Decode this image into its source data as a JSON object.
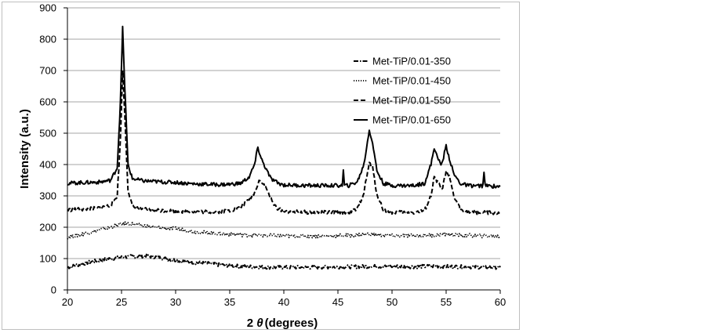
{
  "chart_data": {
    "type": "line",
    "xlabel_prefix": "2 ",
    "xlabel_symbol": "θ",
    "xlabel_suffix": "(degrees)",
    "ylabel": "Intensity (a.u.)",
    "xlim": [
      20,
      60
    ],
    "ylim": [
      0,
      900
    ],
    "xticks": [
      "20",
      "25",
      "30",
      "35",
      "40",
      "45",
      "50",
      "55",
      "60"
    ],
    "yticks": [
      "0",
      "100",
      "200",
      "300",
      "400",
      "500",
      "600",
      "700",
      "800",
      "900"
    ],
    "grid": "horizontal",
    "legend_position": "upper-right",
    "series": [
      {
        "name": "Met-TiP/0.01-350",
        "style": "dashdot",
        "points": [
          [
            20,
            72
          ],
          [
            21,
            80
          ],
          [
            22,
            88
          ],
          [
            23,
            95
          ],
          [
            24,
            100
          ],
          [
            25,
            104
          ],
          [
            26,
            107
          ],
          [
            27,
            108
          ],
          [
            28,
            106
          ],
          [
            29,
            100
          ],
          [
            30,
            95
          ],
          [
            31,
            90
          ],
          [
            32,
            87
          ],
          [
            33,
            84
          ],
          [
            34,
            80
          ],
          [
            35,
            78
          ],
          [
            36,
            75
          ],
          [
            37,
            74
          ],
          [
            38,
            73
          ],
          [
            39,
            72
          ],
          [
            40,
            72
          ],
          [
            42,
            72
          ],
          [
            44,
            73
          ],
          [
            46,
            74
          ],
          [
            48,
            75
          ],
          [
            50,
            75
          ],
          [
            52,
            74
          ],
          [
            54,
            76
          ],
          [
            56,
            74
          ],
          [
            58,
            73
          ],
          [
            60,
            72
          ]
        ]
      },
      {
        "name": "Met-TiP/0.01-450",
        "style": "dotted",
        "points": [
          [
            20,
            168
          ],
          [
            21,
            175
          ],
          [
            22,
            183
          ],
          [
            23,
            192
          ],
          [
            24,
            200
          ],
          [
            25,
            210
          ],
          [
            25.5,
            212
          ],
          [
            26,
            210
          ],
          [
            27,
            205
          ],
          [
            28,
            200
          ],
          [
            29,
            197
          ],
          [
            30,
            195
          ],
          [
            31,
            190
          ],
          [
            32,
            185
          ],
          [
            33,
            182
          ],
          [
            34,
            180
          ],
          [
            35,
            178
          ],
          [
            36,
            176
          ],
          [
            37,
            175
          ],
          [
            38,
            174
          ],
          [
            39,
            173
          ],
          [
            40,
            172
          ],
          [
            42,
            172
          ],
          [
            44,
            172
          ],
          [
            46,
            174
          ],
          [
            48,
            178
          ],
          [
            49,
            175
          ],
          [
            50,
            173
          ],
          [
            52,
            173
          ],
          [
            54,
            175
          ],
          [
            55,
            178
          ],
          [
            56,
            175
          ],
          [
            58,
            173
          ],
          [
            60,
            171
          ]
        ]
      },
      {
        "name": "Met-TiP/0.01-550",
        "style": "dashed",
        "points": [
          [
            20,
            255
          ],
          [
            21,
            257
          ],
          [
            22,
            258
          ],
          [
            23,
            262
          ],
          [
            24,
            270
          ],
          [
            24.6,
            300
          ],
          [
            24.9,
            480
          ],
          [
            25.1,
            700
          ],
          [
            25.3,
            560
          ],
          [
            25.6,
            320
          ],
          [
            26,
            265
          ],
          [
            27,
            258
          ],
          [
            28,
            255
          ],
          [
            29,
            253
          ],
          [
            30,
            252
          ],
          [
            31,
            250
          ],
          [
            32,
            250
          ],
          [
            33,
            249
          ],
          [
            34,
            250
          ],
          [
            35,
            253
          ],
          [
            36,
            262
          ],
          [
            36.8,
            290
          ],
          [
            37.3,
            310
          ],
          [
            37.7,
            350
          ],
          [
            38,
            345
          ],
          [
            38.5,
            315
          ],
          [
            39,
            275
          ],
          [
            39.5,
            258
          ],
          [
            40,
            250
          ],
          [
            42,
            248
          ],
          [
            44,
            247
          ],
          [
            46,
            248
          ],
          [
            46.8,
            258
          ],
          [
            47.4,
            310
          ],
          [
            47.9,
            405
          ],
          [
            48.2,
            390
          ],
          [
            48.6,
            305
          ],
          [
            49.2,
            255
          ],
          [
            50,
            248
          ],
          [
            52,
            247
          ],
          [
            53,
            252
          ],
          [
            53.6,
            300
          ],
          [
            53.9,
            360
          ],
          [
            54.2,
            345
          ],
          [
            54.6,
            318
          ],
          [
            55,
            375
          ],
          [
            55.3,
            360
          ],
          [
            55.7,
            300
          ],
          [
            56.3,
            258
          ],
          [
            57,
            248
          ],
          [
            58,
            247
          ],
          [
            60,
            245
          ]
        ]
      },
      {
        "name": "Met-TiP/0.01-650",
        "style": "solid",
        "points": [
          [
            20,
            340
          ],
          [
            21,
            342
          ],
          [
            22,
            343
          ],
          [
            23,
            344
          ],
          [
            24,
            350
          ],
          [
            24.6,
            390
          ],
          [
            24.9,
            600
          ],
          [
            25.1,
            835
          ],
          [
            25.3,
            650
          ],
          [
            25.6,
            400
          ],
          [
            26,
            355
          ],
          [
            27,
            348
          ],
          [
            28,
            346
          ],
          [
            29,
            344
          ],
          [
            30,
            343
          ],
          [
            31,
            340
          ],
          [
            32,
            338
          ],
          [
            33,
            337
          ],
          [
            34,
            336
          ],
          [
            35,
            337
          ],
          [
            36,
            340
          ],
          [
            36.8,
            360
          ],
          [
            37.3,
            400
          ],
          [
            37.6,
            455
          ],
          [
            37.9,
            420
          ],
          [
            38.3,
            390
          ],
          [
            38.8,
            355
          ],
          [
            39.5,
            340
          ],
          [
            40,
            335
          ],
          [
            42,
            333
          ],
          [
            44,
            333
          ],
          [
            45.4,
            333
          ],
          [
            45.5,
            380
          ],
          [
            45.6,
            333
          ],
          [
            46,
            333
          ],
          [
            46.8,
            345
          ],
          [
            47.4,
            400
          ],
          [
            47.9,
            510
          ],
          [
            48.2,
            470
          ],
          [
            48.6,
            380
          ],
          [
            49.2,
            340
          ],
          [
            50,
            333
          ],
          [
            52,
            333
          ],
          [
            53,
            340
          ],
          [
            53.6,
            400
          ],
          [
            53.9,
            455
          ],
          [
            54.2,
            420
          ],
          [
            54.6,
            400
          ],
          [
            55,
            460
          ],
          [
            55.3,
            420
          ],
          [
            55.7,
            370
          ],
          [
            56.3,
            340
          ],
          [
            57,
            333
          ],
          [
            58,
            332
          ],
          [
            58.4,
            332
          ],
          [
            58.5,
            380
          ],
          [
            58.6,
            332
          ],
          [
            60,
            330
          ]
        ]
      }
    ]
  }
}
